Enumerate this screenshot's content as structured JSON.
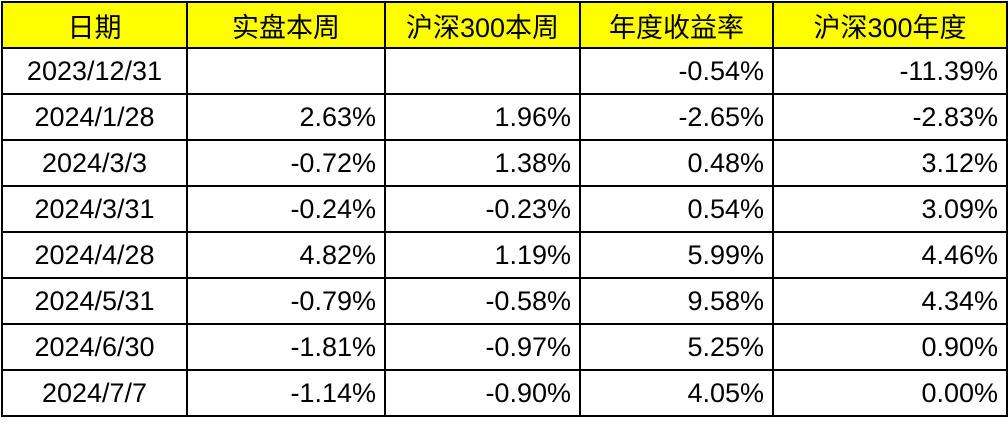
{
  "table": {
    "header": [
      "日期",
      "实盘本周",
      "沪深300本周",
      "年度收益率",
      "沪深300年度"
    ],
    "rows": [
      [
        "2023/12/31",
        null,
        null,
        "-0.54%",
        "-11.39%"
      ],
      [
        "2024/1/28",
        "2.63%",
        "1.96%",
        "-2.65%",
        "-2.83%"
      ],
      [
        "2024/3/3",
        "-0.72%",
        "1.38%",
        "0.48%",
        "3.12%"
      ],
      [
        "2024/3/31",
        "-0.24%",
        "-0.23%",
        "0.54%",
        "3.09%"
      ],
      [
        "2024/4/28",
        "4.82%",
        "1.19%",
        "5.99%",
        "4.46%"
      ],
      [
        "2024/5/31",
        "-0.79%",
        "-0.58%",
        "9.58%",
        "4.34%"
      ],
      [
        "2024/6/30",
        "-1.81%",
        "-0.97%",
        "5.25%",
        "0.90%"
      ],
      [
        "2024/7/7",
        "-1.14%",
        "-0.90%",
        "4.05%",
        "0.00%"
      ]
    ]
  }
}
